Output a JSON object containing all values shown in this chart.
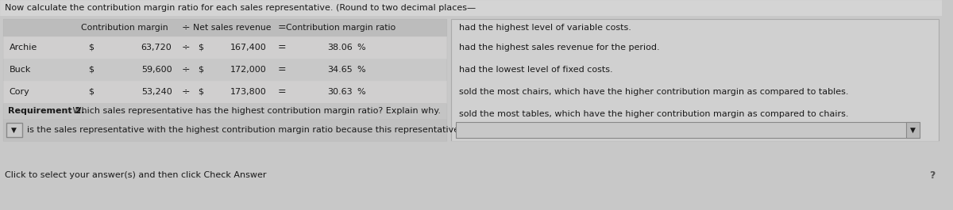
{
  "title": "Now calculate the contribution margin ratio for each sales representative. (Round to two decimal places—",
  "rows": [
    {
      "name": "Archie",
      "cm": "63,720",
      "ns": "167,400",
      "ratio": "38.06",
      "note": "had the highest sales revenue for the period."
    },
    {
      "name": "Buck",
      "cm": "59,600",
      "ns": "172,000",
      "ratio": "34.65",
      "note": "had the lowest level of fixed costs."
    },
    {
      "name": "Cory",
      "cm": "53,240",
      "ns": "173,800",
      "ratio": "30.63",
      "note": "sold the most chairs, which have the higher contribution margin as compared to tables."
    }
  ],
  "right_col_top": "had the highest level of variable costs.",
  "right_col_bottom": "sold the most tables, which have the higher contribution margin as compared to chairs.",
  "req2_bold": "Requirement 2.",
  "req2_rest": " Which sales representative has the highest contribution margin ratio? Explain why.",
  "dropdown1_text": "is the sales representative with the highest contribution margin ratio because this representative",
  "click_text": "Click to select your answer(s) and then click Check Answer",
  "bg_page": "#c8c8c8",
  "bg_title": "#d4d4d4",
  "bg_main_panel": "#c0c0c0",
  "bg_table": "#c8c8c8",
  "bg_header": "#bcbcbc",
  "bg_row_odd": "#d0cfcf",
  "bg_row_even": "#c8c8c8",
  "bg_right_panel": "#d0d0d0",
  "bg_req2": "#c4c4c4",
  "bg_dropdown_row": "#c0c0c0",
  "bg_dropdown_box": "#c8c8c8",
  "bg_input_box": "#c8c8c8",
  "text_color": "#1a1a1a",
  "font_size_title": 8.0,
  "font_size_body": 8.0,
  "font_size_req": 8.0
}
